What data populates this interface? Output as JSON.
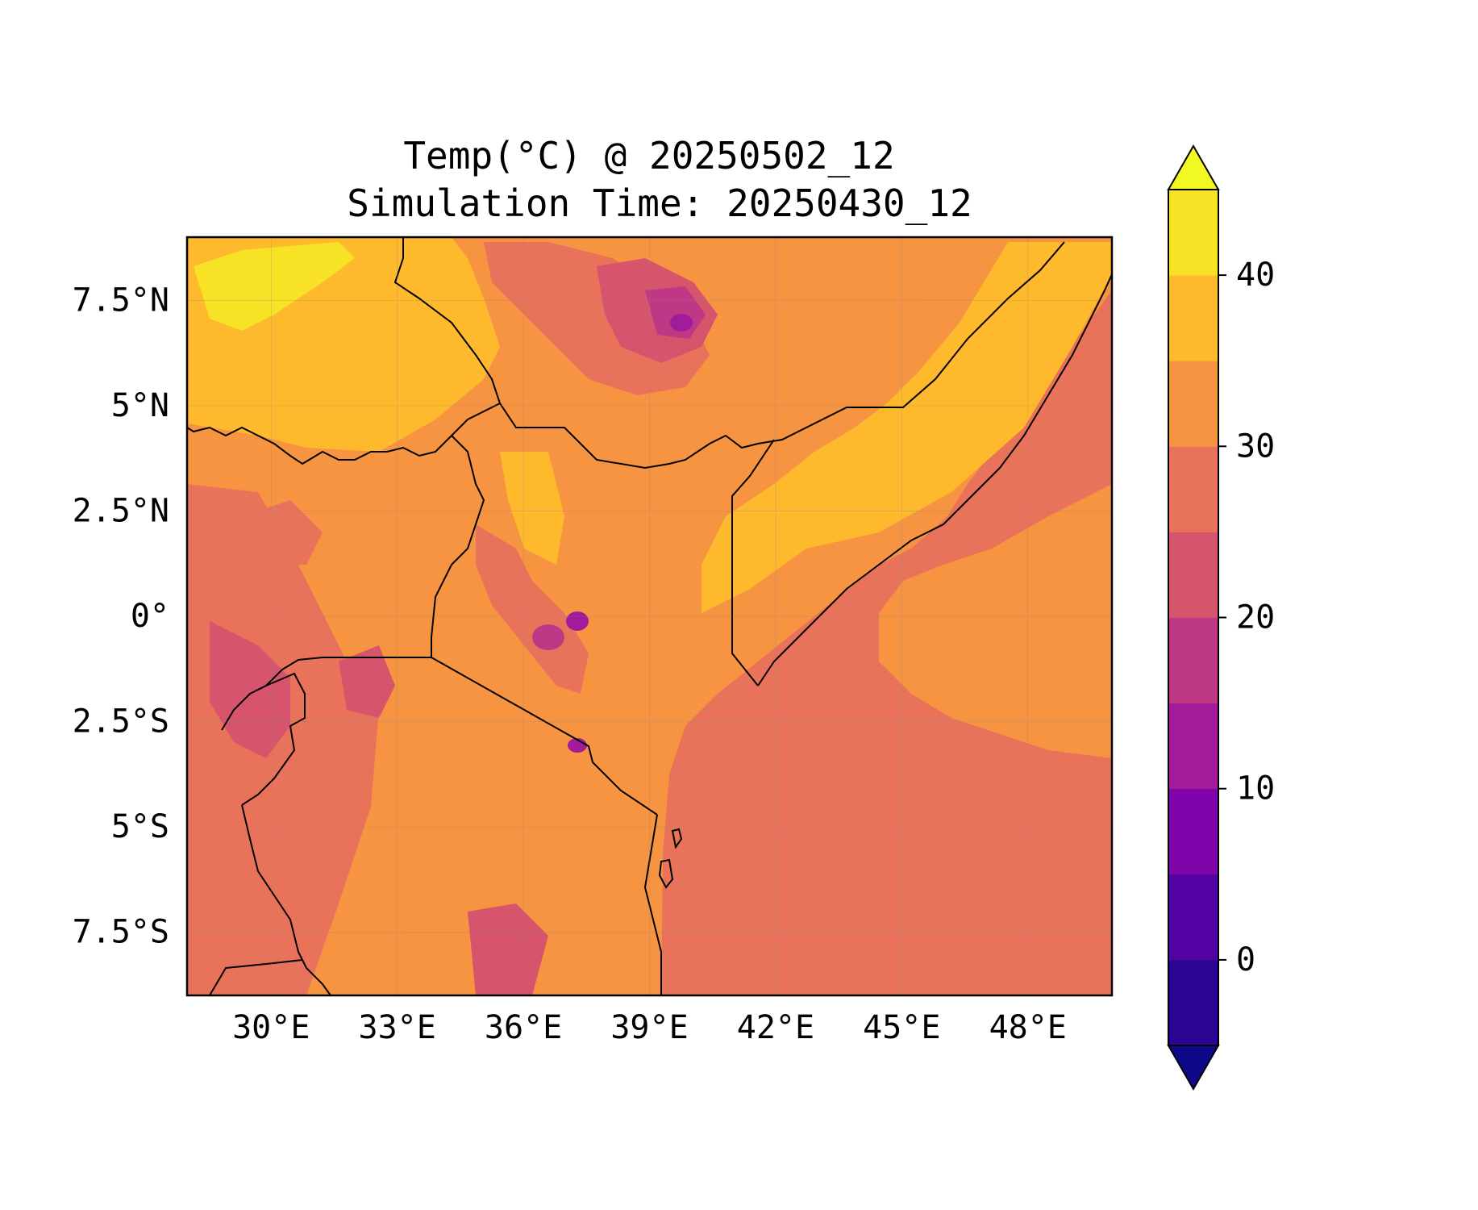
{
  "title_line1": "Temp(°C) @ 20250502_12",
  "title_line2": "Simulation Time: 20250430_12",
  "map": {
    "x_ticks": [
      "30°E",
      "33°E",
      "36°E",
      "39°E",
      "42°E",
      "45°E",
      "48°E"
    ],
    "y_ticks": [
      "7.5°N",
      "5°N",
      "2.5°N",
      "0°",
      "2.5°S",
      "5°S",
      "7.5°S"
    ],
    "x_tick_values": [
      30,
      33,
      36,
      39,
      42,
      45,
      48
    ],
    "y_tick_values": [
      7.5,
      5,
      2.5,
      0,
      -2.5,
      -5,
      -7.5
    ],
    "lon_range": [
      28,
      50
    ],
    "lat_range": [
      -9,
      9
    ],
    "gridlines": true
  },
  "colorbar": {
    "tick_labels": [
      "40",
      "30",
      "20",
      "10",
      "0"
    ],
    "tick_values": [
      40,
      30,
      20,
      10,
      0
    ],
    "range": [
      -5,
      45
    ],
    "step": 5,
    "extend": "both",
    "colors": [
      "#0d0887",
      "#2c0594",
      "#5302a3",
      "#7e03a8",
      "#a11b9b",
      "#be3885",
      "#d6556d",
      "#e9735a",
      "#f79441",
      "#feba2c",
      "#f7e225",
      "#f0f921"
    ]
  },
  "legend_placement": "right"
}
